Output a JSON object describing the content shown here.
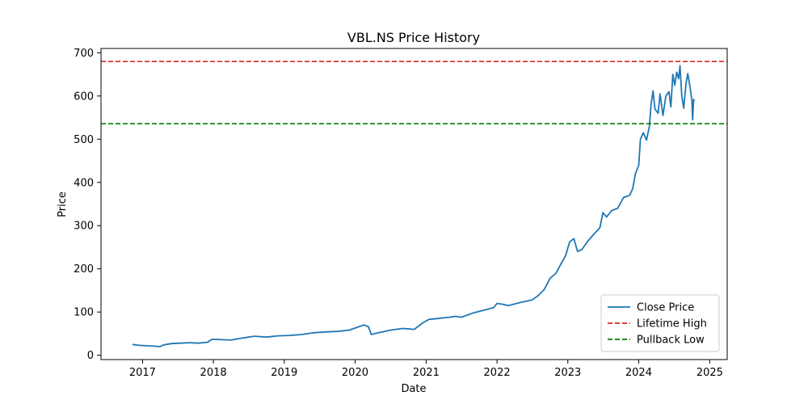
{
  "chart_data": {
    "type": "line",
    "title": "VBL.NS Price History",
    "xlabel": "Date",
    "ylabel": "Price",
    "xlim": [
      "2016-06-01",
      "2025-04-01"
    ],
    "ylim": [
      -10,
      710
    ],
    "x_ticks": [
      "2017",
      "2018",
      "2019",
      "2020",
      "2021",
      "2022",
      "2023",
      "2024",
      "2025"
    ],
    "y_ticks": [
      0,
      100,
      200,
      300,
      400,
      500,
      600,
      700
    ],
    "grid": false,
    "legend_position": "lower-right",
    "series": [
      {
        "name": "Close Price",
        "color": "#1f77b4",
        "style": "solid",
        "points": [
          [
            "2016-11-10",
            25
          ],
          [
            "2016-12-15",
            23
          ],
          [
            "2017-01-20",
            22
          ],
          [
            "2017-03-01",
            21
          ],
          [
            "2017-04-01",
            20
          ],
          [
            "2017-04-20",
            24
          ],
          [
            "2017-06-01",
            27
          ],
          [
            "2017-07-15",
            28
          ],
          [
            "2017-09-01",
            29
          ],
          [
            "2017-10-15",
            28
          ],
          [
            "2017-12-01",
            30
          ],
          [
            "2017-12-25",
            37
          ],
          [
            "2018-02-15",
            36
          ],
          [
            "2018-04-01",
            35
          ],
          [
            "2018-06-01",
            40
          ],
          [
            "2018-08-01",
            44
          ],
          [
            "2018-10-01",
            42
          ],
          [
            "2018-12-01",
            45
          ],
          [
            "2019-02-01",
            46
          ],
          [
            "2019-04-01",
            48
          ],
          [
            "2019-06-01",
            52
          ],
          [
            "2019-08-01",
            54
          ],
          [
            "2019-10-01",
            55
          ],
          [
            "2019-12-01",
            58
          ],
          [
            "2020-01-01",
            63
          ],
          [
            "2020-02-15",
            70
          ],
          [
            "2020-03-10",
            66
          ],
          [
            "2020-03-25",
            48
          ],
          [
            "2020-05-01",
            52
          ],
          [
            "2020-07-01",
            58
          ],
          [
            "2020-09-01",
            62
          ],
          [
            "2020-11-01",
            60
          ],
          [
            "2020-12-15",
            75
          ],
          [
            "2021-01-15",
            83
          ],
          [
            "2021-03-01",
            85
          ],
          [
            "2021-05-01",
            88
          ],
          [
            "2021-06-01",
            90
          ],
          [
            "2021-07-01",
            88
          ],
          [
            "2021-09-01",
            98
          ],
          [
            "2021-11-01",
            105
          ],
          [
            "2021-12-15",
            110
          ],
          [
            "2022-01-01",
            120
          ],
          [
            "2022-02-01",
            118
          ],
          [
            "2022-03-01",
            115
          ],
          [
            "2022-05-01",
            122
          ],
          [
            "2022-06-01",
            125
          ],
          [
            "2022-07-01",
            128
          ],
          [
            "2022-08-01",
            138
          ],
          [
            "2022-09-01",
            152
          ],
          [
            "2022-10-01",
            178
          ],
          [
            "2022-11-01",
            190
          ],
          [
            "2022-12-01",
            215
          ],
          [
            "2022-12-20",
            230
          ],
          [
            "2023-01-10",
            262
          ],
          [
            "2023-02-01",
            270
          ],
          [
            "2023-02-20",
            240
          ],
          [
            "2023-03-15",
            245
          ],
          [
            "2023-04-15",
            265
          ],
          [
            "2023-05-15",
            280
          ],
          [
            "2023-06-15",
            295
          ],
          [
            "2023-07-01",
            330
          ],
          [
            "2023-07-20",
            320
          ],
          [
            "2023-08-15",
            335
          ],
          [
            "2023-09-15",
            340
          ],
          [
            "2023-10-15",
            365
          ],
          [
            "2023-11-15",
            370
          ],
          [
            "2023-12-01",
            385
          ],
          [
            "2023-12-15",
            420
          ],
          [
            "2024-01-01",
            440
          ],
          [
            "2024-01-10",
            500
          ],
          [
            "2024-01-25",
            515
          ],
          [
            "2024-02-10",
            498
          ],
          [
            "2024-02-25",
            530
          ],
          [
            "2024-03-05",
            580
          ],
          [
            "2024-03-15",
            612
          ],
          [
            "2024-03-25",
            570
          ],
          [
            "2024-04-10",
            560
          ],
          [
            "2024-04-20",
            605
          ],
          [
            "2024-05-05",
            555
          ],
          [
            "2024-05-20",
            600
          ],
          [
            "2024-06-05",
            610
          ],
          [
            "2024-06-15",
            575
          ],
          [
            "2024-06-25",
            650
          ],
          [
            "2024-07-05",
            625
          ],
          [
            "2024-07-15",
            655
          ],
          [
            "2024-07-25",
            640
          ],
          [
            "2024-08-01",
            670
          ],
          [
            "2024-08-10",
            600
          ],
          [
            "2024-08-20",
            572
          ],
          [
            "2024-09-01",
            630
          ],
          [
            "2024-09-10",
            652
          ],
          [
            "2024-09-20",
            625
          ],
          [
            "2024-09-25",
            610
          ],
          [
            "2024-10-01",
            590
          ],
          [
            "2024-10-05",
            545
          ],
          [
            "2024-10-10",
            592
          ],
          [
            "2024-10-15",
            588
          ]
        ]
      },
      {
        "name": "Lifetime High",
        "color": "#d62728",
        "style": "dashed",
        "y": 680
      },
      {
        "name": "Pullback Low",
        "color": "#008000",
        "style": "dashed",
        "y": 536
      }
    ]
  }
}
